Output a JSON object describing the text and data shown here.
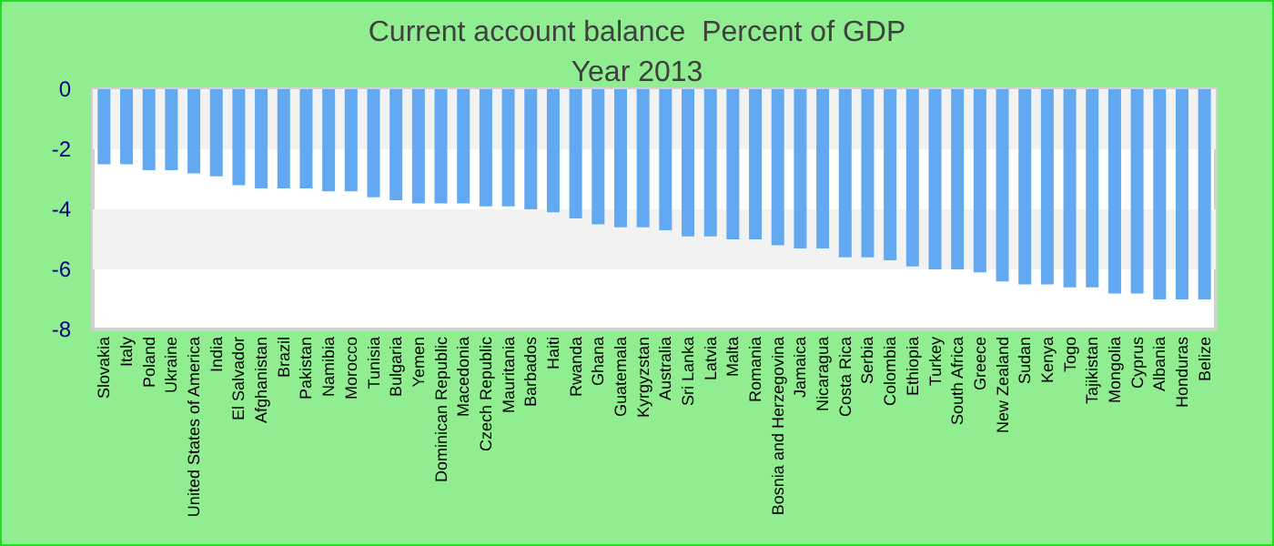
{
  "chart_data": {
    "type": "bar",
    "title": "Current account balance  Percent of GDP",
    "subtitle": "Year 2013",
    "categories": [
      "Slovakia",
      "Italy",
      "Poland",
      "Ukraine",
      "United States of America",
      "India",
      "El Salvador",
      "Afghanistan",
      "Brazil",
      "Pakistan",
      "Namibia",
      "Morocco",
      "Tunisia",
      "Bulgaria",
      "Yemen",
      "Dominican Republic",
      "Macedonia",
      "Czech Republic",
      "Mauritania",
      "Barbados",
      "Haiti",
      "Rwanda",
      "Ghana",
      "Guatemala",
      "Kyrgyzstan",
      "Australia",
      "Sri Lanka",
      "Latvia",
      "Malta",
      "Romania",
      "Bosnia and Herzegovina",
      "Jamaica",
      "Nicaragua",
      "Costa Rica",
      "Serbia",
      "Colombia",
      "Ethiopia",
      "Turkey",
      "South Africa",
      "Greece",
      "New Zealand",
      "Sudan",
      "Kenya",
      "Togo",
      "Tajikistan",
      "Mongolia",
      "Cyprus",
      "Albania",
      "Honduras",
      "Belize"
    ],
    "values": [
      -2.5,
      -2.5,
      -2.7,
      -2.7,
      -2.8,
      -2.9,
      -3.2,
      -3.3,
      -3.3,
      -3.3,
      -3.4,
      -3.4,
      -3.6,
      -3.7,
      -3.8,
      -3.8,
      -3.8,
      -3.9,
      -3.9,
      -4.0,
      -4.1,
      -4.3,
      -4.5,
      -4.6,
      -4.6,
      -4.7,
      -4.9,
      -4.9,
      -5.0,
      -5.0,
      -5.2,
      -5.3,
      -5.3,
      -5.6,
      -5.6,
      -5.7,
      -5.9,
      -6.0,
      -6.0,
      -6.1,
      -6.4,
      -6.5,
      -6.5,
      -6.6,
      -6.6,
      -6.8,
      -6.8,
      -7.0,
      -7.0,
      -7.0
    ],
    "color": "#63a9f2",
    "ylim": [
      -8,
      0
    ],
    "yticks": [
      0,
      -2,
      -4,
      -6,
      -8
    ],
    "bands": [
      {
        "axis": "y",
        "from": 0,
        "to": -2,
        "color": "#f2f2f2"
      },
      {
        "axis": "y",
        "from": -4,
        "to": -6,
        "color": "#f2f2f2"
      }
    ]
  }
}
